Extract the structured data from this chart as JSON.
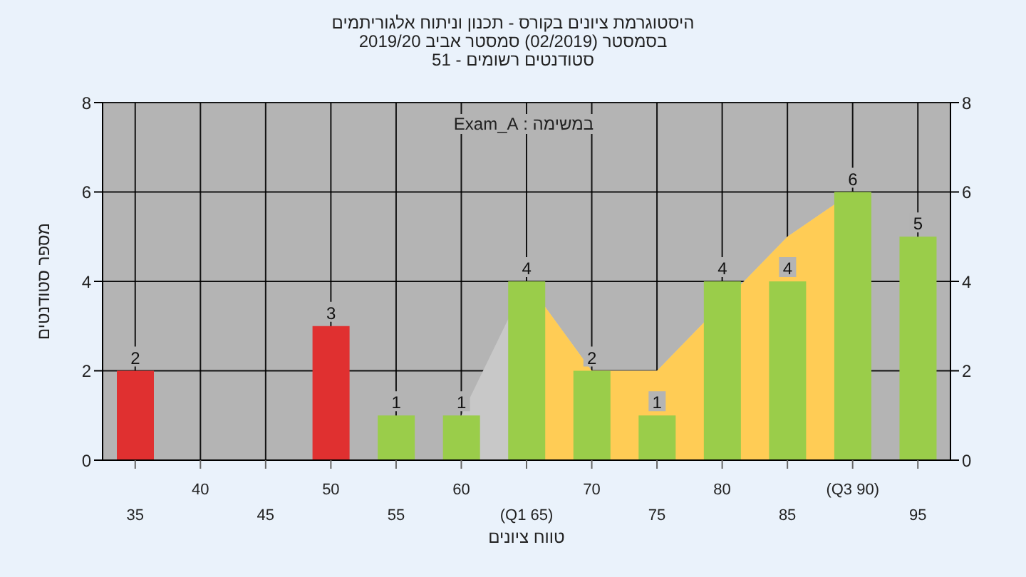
{
  "chart_data": {
    "type": "bar",
    "title": "היסטוגרמת ציונים בקורס - תכנון וניתוח אלגוריתמים",
    "subtitle": "בסמסטר  (02/2019)  סמסטר אביב 2019/20\nסטודנטים רשומים - 51",
    "annotations": [
      "במשימה : Exam_A"
    ],
    "xlabel": "טווח ציונים",
    "ylabel": "מספר סטודנטים",
    "categories": [
      "35",
      "40",
      "45",
      "50",
      "55",
      "60",
      "(Q1 65)",
      "70",
      "75",
      "80",
      "85",
      "(Q3 90)",
      "95"
    ],
    "series": [
      {
        "type": "area",
        "color": "#c8c8c8",
        "values": [
          null,
          null,
          null,
          null,
          null,
          1,
          4,
          2,
          2,
          null,
          5,
          6,
          null
        ]
      },
      {
        "type": "area",
        "color": "#ffcc55",
        "values": [
          null,
          null,
          null,
          null,
          null,
          null,
          4,
          2,
          2,
          null,
          5,
          6,
          null
        ]
      },
      {
        "colors": [
          "#e03030",
          "#e03030",
          "#e03030",
          "#e03030",
          "#9acd4a",
          "#9acd4a",
          "#9acd4a",
          "#9acd4a",
          "#9acd4a",
          "#9acd4a",
          "#9acd4a",
          "#9acd4a",
          "#9acd4a"
        ],
        "values": [
          2,
          0,
          0,
          3,
          1,
          1,
          4,
          2,
          1,
          4,
          4,
          6,
          5
        ],
        "value_labels": [
          "2",
          null,
          null,
          "3",
          "1",
          "1",
          "4",
          "2",
          "1",
          "4",
          "4",
          "6",
          "5"
        ]
      }
    ],
    "ylim": [
      0,
      8
    ],
    "yticks": [
      0,
      2,
      4,
      6,
      8
    ],
    "y2lim": [
      0,
      8
    ],
    "y2ticks": [
      0,
      2,
      4,
      6,
      8
    ],
    "grid": true
  }
}
